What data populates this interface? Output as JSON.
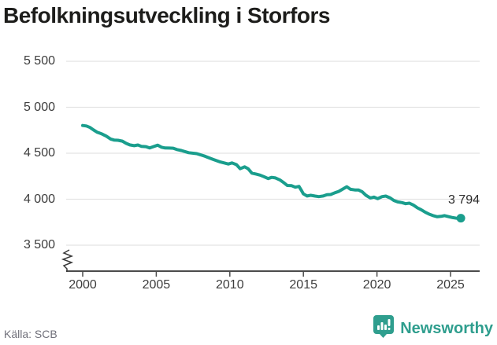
{
  "header": {
    "title": "Befolkningsutveckling i Storfors"
  },
  "chart_data": {
    "type": "line",
    "title": "Befolkningsutveckling i Storfors",
    "x_axis": {
      "ticks": [
        2000,
        2005,
        2010,
        2015,
        2020,
        2025
      ],
      "axis_break_at_origin": true
    },
    "y_axis": {
      "ticks": [
        {
          "value": 5500,
          "label": "5 500"
        },
        {
          "value": 5000,
          "label": "5 000"
        },
        {
          "value": 4500,
          "label": "4 500"
        },
        {
          "value": 4000,
          "label": "4 000"
        },
        {
          "value": 3500,
          "label": "3 500"
        }
      ]
    },
    "grid": true,
    "legend": "none",
    "line_color": "#1a9e8d",
    "series": [
      {
        "name": "Befolkning",
        "end_marker": true,
        "points": [
          [
            2000.0,
            4802
          ],
          [
            2000.25,
            4797
          ],
          [
            2000.5,
            4780
          ],
          [
            2000.75,
            4752
          ],
          [
            2001.0,
            4727
          ],
          [
            2001.3,
            4710
          ],
          [
            2001.6,
            4686
          ],
          [
            2001.9,
            4655
          ],
          [
            2002.15,
            4643
          ],
          [
            2002.4,
            4641
          ],
          [
            2002.7,
            4632
          ],
          [
            2002.95,
            4608
          ],
          [
            2003.2,
            4591
          ],
          [
            2003.5,
            4582
          ],
          [
            2003.75,
            4590
          ],
          [
            2004.0,
            4574
          ],
          [
            2004.3,
            4572
          ],
          [
            2004.55,
            4557
          ],
          [
            2004.8,
            4572
          ],
          [
            2005.1,
            4588
          ],
          [
            2005.35,
            4566
          ],
          [
            2005.6,
            4557
          ],
          [
            2005.9,
            4556
          ],
          [
            2006.15,
            4555
          ],
          [
            2006.4,
            4540
          ],
          [
            2006.7,
            4530
          ],
          [
            2007.2,
            4506
          ],
          [
            2007.75,
            4496
          ],
          [
            2008.3,
            4468
          ],
          [
            2008.85,
            4434
          ],
          [
            2009.35,
            4405
          ],
          [
            2009.9,
            4383
          ],
          [
            2010.15,
            4395
          ],
          [
            2010.45,
            4376
          ],
          [
            2010.7,
            4332
          ],
          [
            2011.0,
            4352
          ],
          [
            2011.25,
            4331
          ],
          [
            2011.5,
            4284
          ],
          [
            2011.8,
            4273
          ],
          [
            2012.05,
            4262
          ],
          [
            2012.3,
            4246
          ],
          [
            2012.6,
            4225
          ],
          [
            2012.85,
            4238
          ],
          [
            2013.1,
            4232
          ],
          [
            2013.4,
            4210
          ],
          [
            2013.65,
            4182
          ],
          [
            2013.9,
            4150
          ],
          [
            2014.2,
            4147
          ],
          [
            2014.45,
            4131
          ],
          [
            2014.7,
            4139
          ],
          [
            2014.85,
            4100
          ],
          [
            2015.0,
            4058
          ],
          [
            2015.25,
            4035
          ],
          [
            2015.5,
            4043
          ],
          [
            2015.8,
            4034
          ],
          [
            2016.05,
            4028
          ],
          [
            2016.35,
            4035
          ],
          [
            2016.6,
            4050
          ],
          [
            2016.85,
            4051
          ],
          [
            2017.15,
            4071
          ],
          [
            2017.4,
            4085
          ],
          [
            2017.65,
            4108
          ],
          [
            2017.95,
            4136
          ],
          [
            2018.2,
            4108
          ],
          [
            2018.5,
            4101
          ],
          [
            2018.75,
            4100
          ],
          [
            2019.0,
            4080
          ],
          [
            2019.25,
            4043
          ],
          [
            2019.55,
            4014
          ],
          [
            2019.8,
            4023
          ],
          [
            2020.05,
            4006
          ],
          [
            2020.35,
            4028
          ],
          [
            2020.6,
            4034
          ],
          [
            2020.9,
            4014
          ],
          [
            2021.15,
            3986
          ],
          [
            2021.4,
            3971
          ],
          [
            2021.7,
            3963
          ],
          [
            2021.95,
            3951
          ],
          [
            2022.2,
            3957
          ],
          [
            2022.5,
            3934
          ],
          [
            2022.75,
            3906
          ],
          [
            2023.0,
            3886
          ],
          [
            2023.3,
            3857
          ],
          [
            2023.55,
            3838
          ],
          [
            2023.8,
            3822
          ],
          [
            2024.1,
            3809
          ],
          [
            2024.35,
            3814
          ],
          [
            2024.6,
            3821
          ],
          [
            2024.9,
            3809
          ],
          [
            2025.15,
            3800
          ],
          [
            2025.45,
            3792
          ],
          [
            2025.7,
            3794
          ]
        ]
      }
    ],
    "end_label": "3 794",
    "last_value": 3794
  },
  "footer": {
    "source": "Källa: SCB",
    "brand": "Newsworthy",
    "brand_color": "#2f9e8e"
  },
  "icons": {
    "logo": "newsworthy-speech-bubble-bar-chart-icon"
  }
}
